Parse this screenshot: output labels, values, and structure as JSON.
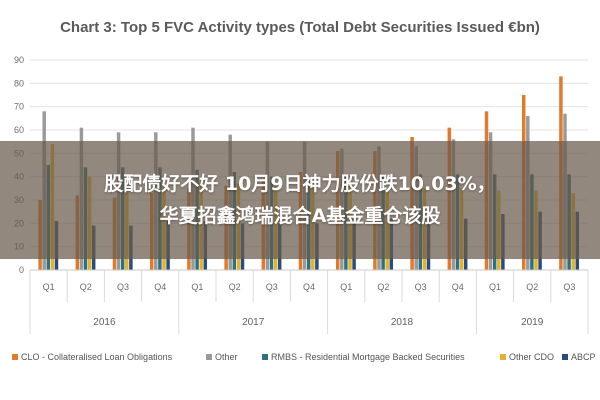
{
  "chart_data": {
    "type": "bar",
    "title": "Chart 3: Top 5 FVC Activity types (Total Debt Securities Issued €bn)",
    "xlabel": "",
    "ylabel": "",
    "ylim": [
      0,
      90
    ],
    "yticks": [
      "0",
      "10",
      "20",
      "30",
      "40",
      "50",
      "60",
      "70",
      "80",
      "90"
    ],
    "grid": true,
    "legend_position": "bottom",
    "categories": [
      "Q1",
      "Q2",
      "Q3",
      "Q4",
      "Q1",
      "Q2",
      "Q3",
      "Q4",
      "Q1",
      "Q2",
      "Q3",
      "Q4",
      "Q1",
      "Q2",
      "Q3"
    ],
    "year_groups": [
      {
        "label": "2016",
        "count": 4
      },
      {
        "label": "2017",
        "count": 4
      },
      {
        "label": "2018",
        "count": 4
      },
      {
        "label": "2019",
        "count": 3
      }
    ],
    "series": [
      {
        "name": "CLO - Collateralised Loan Obligations",
        "color": "#e07b2c",
        "values": [
          30,
          32,
          31,
          33,
          35,
          36,
          38,
          42,
          51,
          51,
          57,
          61,
          68,
          75,
          83
        ]
      },
      {
        "name": "Other",
        "color": "#9a9a9a",
        "values": [
          68,
          61,
          59,
          59,
          61,
          58,
          55,
          55,
          52,
          53,
          53,
          56,
          59,
          66,
          67
        ]
      },
      {
        "name": "RMBS - Residential Mortgage Backed Securities",
        "color": "#2d7080",
        "values": [
          45,
          44,
          44,
          44,
          43,
          42,
          40,
          40,
          41,
          41,
          41,
          41,
          41,
          41,
          41
        ]
      },
      {
        "name": "Other CDO",
        "color": "#e2b32b",
        "values": [
          54,
          40,
          38,
          37,
          38,
          37,
          36,
          36,
          36,
          35,
          35,
          35,
          34,
          34,
          33
        ]
      },
      {
        "name": "ABCP",
        "color": "#2a4b7c",
        "values": [
          21,
          19,
          19,
          21,
          21,
          20,
          20,
          20,
          22,
          22,
          22,
          22,
          24,
          25,
          25
        ]
      }
    ]
  },
  "overlay": {
    "line1": "股配债好不好 10月9日神力股份跌10.03%，",
    "line2": "华夏招鑫鸿瑞混合A基金重仓该股"
  }
}
